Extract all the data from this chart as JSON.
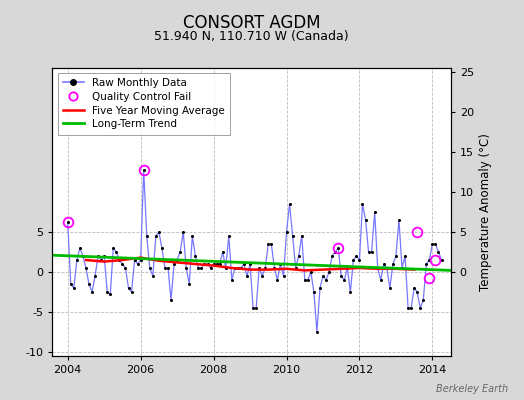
{
  "title": "CONSORT AGDM",
  "subtitle": "51.940 N, 110.710 W (Canada)",
  "ylabel": "Temperature Anomaly (°C)",
  "watermark": "Berkeley Earth",
  "xlim": [
    2003.58,
    2014.5
  ],
  "ylim": [
    -10.5,
    25.5
  ],
  "yticks_left": [
    -10,
    -5,
    0,
    5
  ],
  "yticks_right": [
    0,
    5,
    10,
    15,
    20,
    25
  ],
  "xticks": [
    2004,
    2006,
    2008,
    2010,
    2012,
    2014
  ],
  "background_color": "#d8d8d8",
  "plot_background": "#ffffff",
  "raw_x": [
    2004.0,
    2004.083,
    2004.167,
    2004.25,
    2004.333,
    2004.417,
    2004.5,
    2004.583,
    2004.667,
    2004.75,
    2004.833,
    2004.917,
    2005.0,
    2005.083,
    2005.167,
    2005.25,
    2005.333,
    2005.417,
    2005.5,
    2005.583,
    2005.667,
    2005.75,
    2005.833,
    2005.917,
    2006.0,
    2006.083,
    2006.167,
    2006.25,
    2006.333,
    2006.417,
    2006.5,
    2006.583,
    2006.667,
    2006.75,
    2006.833,
    2006.917,
    2007.0,
    2007.083,
    2007.167,
    2007.25,
    2007.333,
    2007.417,
    2007.5,
    2007.583,
    2007.667,
    2007.75,
    2007.833,
    2007.917,
    2008.0,
    2008.083,
    2008.167,
    2008.25,
    2008.333,
    2008.417,
    2008.5,
    2008.583,
    2008.667,
    2008.75,
    2008.833,
    2008.917,
    2009.0,
    2009.083,
    2009.167,
    2009.25,
    2009.333,
    2009.417,
    2009.5,
    2009.583,
    2009.667,
    2009.75,
    2009.833,
    2009.917,
    2010.0,
    2010.083,
    2010.167,
    2010.25,
    2010.333,
    2010.417,
    2010.5,
    2010.583,
    2010.667,
    2010.75,
    2010.833,
    2010.917,
    2011.0,
    2011.083,
    2011.167,
    2011.25,
    2011.333,
    2011.417,
    2011.5,
    2011.583,
    2011.667,
    2011.75,
    2011.833,
    2011.917,
    2012.0,
    2012.083,
    2012.167,
    2012.25,
    2012.333,
    2012.417,
    2012.5,
    2012.583,
    2012.667,
    2012.75,
    2012.833,
    2012.917,
    2013.0,
    2013.083,
    2013.167,
    2013.25,
    2013.333,
    2013.417,
    2013.5,
    2013.583,
    2013.667,
    2013.75,
    2013.833,
    2013.917,
    2014.0,
    2014.083,
    2014.167,
    2014.25
  ],
  "raw_y": [
    6.2,
    -1.5,
    -2.0,
    1.5,
    3.0,
    2.0,
    0.5,
    -1.5,
    -2.5,
    -0.5,
    2.0,
    1.5,
    2.0,
    -2.5,
    -2.8,
    3.0,
    2.5,
    1.5,
    1.0,
    0.5,
    -2.0,
    -2.5,
    1.5,
    1.0,
    1.5,
    12.8,
    4.5,
    0.5,
    -0.5,
    4.5,
    5.0,
    3.0,
    0.5,
    0.5,
    -3.5,
    1.0,
    1.5,
    2.5,
    5.0,
    0.5,
    -1.5,
    4.5,
    2.0,
    0.5,
    0.5,
    1.0,
    1.0,
    0.5,
    1.0,
    1.0,
    1.0,
    2.5,
    0.5,
    4.5,
    -1.0,
    0.5,
    0.5,
    0.5,
    1.0,
    -0.5,
    1.0,
    -4.5,
    -4.5,
    0.5,
    -0.5,
    0.5,
    3.5,
    3.5,
    0.5,
    -1.0,
    1.0,
    -0.5,
    5.0,
    8.5,
    4.5,
    0.5,
    2.0,
    4.5,
    -1.0,
    -1.0,
    0.0,
    -2.5,
    -7.5,
    -2.0,
    -0.5,
    -1.0,
    0.0,
    2.0,
    2.5,
    3.0,
    -0.5,
    -1.0,
    0.5,
    -2.5,
    1.5,
    2.0,
    1.5,
    8.5,
    6.5,
    2.5,
    2.5,
    7.5,
    0.5,
    -1.0,
    1.0,
    0.5,
    -2.0,
    1.0,
    2.0,
    6.5,
    0.5,
    2.0,
    -4.5,
    -4.5,
    -2.0,
    -2.5,
    -4.5,
    -3.5,
    1.0,
    1.5,
    3.5,
    3.5,
    2.5,
    1.5
  ],
  "qc_fail_x": [
    2004.0,
    2006.083,
    2011.417,
    2013.583,
    2013.917,
    2014.083
  ],
  "qc_fail_y": [
    6.2,
    12.8,
    3.0,
    5.0,
    -0.8,
    1.5
  ],
  "mavg_x": [
    2004.5,
    2005.0,
    2005.5,
    2006.0,
    2006.5,
    2007.0,
    2007.5,
    2008.0,
    2008.5,
    2009.0,
    2009.5,
    2010.0,
    2010.5,
    2011.0,
    2011.5,
    2012.0,
    2012.5,
    2013.0,
    2013.5
  ],
  "mavg_y": [
    1.5,
    1.3,
    1.5,
    1.8,
    1.4,
    1.2,
    1.0,
    0.8,
    0.5,
    0.3,
    0.3,
    0.4,
    0.2,
    0.3,
    0.4,
    0.5,
    0.4,
    0.4,
    0.3
  ],
  "trend_x": [
    2003.58,
    2014.5
  ],
  "trend_y": [
    2.1,
    0.2
  ],
  "raw_line_color": "#7777ff",
  "dot_color": "#000000",
  "mavg_color": "#ff0000",
  "trend_color": "#00bb00",
  "qc_color": "#ff00ff",
  "grid_color": "#bbbbbb",
  "title_fontsize": 12,
  "subtitle_fontsize": 9,
  "tick_fontsize": 8,
  "legend_fontsize": 7.5
}
